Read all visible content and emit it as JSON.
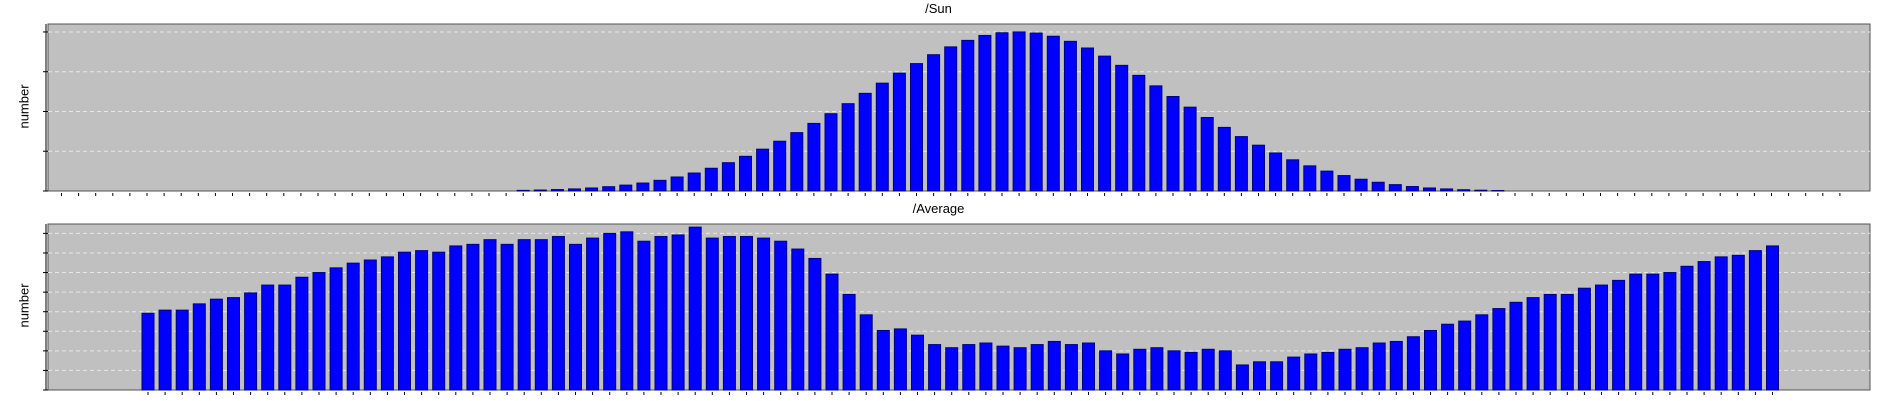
{
  "colors": {
    "plot_background": "#c0c0c0",
    "bar_fill": "#0000ff",
    "bar_stroke": "#000080",
    "grid": "#e8e8e8"
  },
  "chart_data": [
    {
      "type": "bar",
      "title": "/Sun",
      "ylabel": "number",
      "xlabel": "",
      "grid": true,
      "ylim": [
        0,
        1.05
      ],
      "yticks": [
        0,
        0.25,
        0.5,
        0.75,
        1.0
      ],
      "values": [
        0,
        0,
        0,
        0,
        0,
        0,
        0,
        0,
        0,
        0,
        0,
        0,
        0,
        0,
        0,
        0,
        0,
        0,
        0,
        0,
        0,
        0,
        0,
        0,
        0,
        0,
        0,
        0.004,
        0.006,
        0.009,
        0.013,
        0.019,
        0.027,
        0.037,
        0.05,
        0.067,
        0.088,
        0.113,
        0.143,
        0.178,
        0.218,
        0.263,
        0.313,
        0.367,
        0.425,
        0.486,
        0.549,
        0.614,
        0.678,
        0.741,
        0.801,
        0.857,
        0.906,
        0.947,
        0.978,
        0.995,
        1.0,
        0.993,
        0.973,
        0.941,
        0.899,
        0.848,
        0.79,
        0.727,
        0.661,
        0.594,
        0.527,
        0.462,
        0.4,
        0.342,
        0.288,
        0.239,
        0.196,
        0.158,
        0.125,
        0.097,
        0.074,
        0.055,
        0.04,
        0.028,
        0.019,
        0.013,
        0.008,
        0.005,
        0.003,
        0,
        0,
        0,
        0,
        0,
        0,
        0,
        0,
        0,
        0,
        0,
        0,
        0,
        0,
        0,
        0,
        0,
        0,
        0,
        0
      ]
    },
    {
      "type": "bar",
      "title": "/Average",
      "ylabel": "number",
      "xlabel": "",
      "grid": true,
      "ylim": [
        0,
        1.06
      ],
      "yticks": [
        0,
        0.125,
        0.25,
        0.375,
        0.5,
        0.625,
        0.75,
        0.875,
        1.0
      ],
      "values": [
        0.49,
        0.51,
        0.51,
        0.55,
        0.58,
        0.59,
        0.62,
        0.67,
        0.67,
        0.72,
        0.75,
        0.78,
        0.81,
        0.83,
        0.85,
        0.88,
        0.89,
        0.88,
        0.92,
        0.93,
        0.96,
        0.93,
        0.96,
        0.96,
        0.98,
        0.93,
        0.97,
        1.0,
        1.01,
        0.95,
        0.98,
        0.99,
        1.04,
        0.97,
        0.98,
        0.98,
        0.97,
        0.95,
        0.9,
        0.84,
        0.74,
        0.61,
        0.48,
        0.38,
        0.39,
        0.35,
        0.29,
        0.27,
        0.29,
        0.3,
        0.28,
        0.27,
        0.29,
        0.31,
        0.29,
        0.3,
        0.25,
        0.23,
        0.26,
        0.27,
        0.25,
        0.24,
        0.26,
        0.25,
        0.16,
        0.18,
        0.18,
        0.21,
        0.23,
        0.24,
        0.26,
        0.27,
        0.3,
        0.31,
        0.34,
        0.38,
        0.42,
        0.44,
        0.48,
        0.52,
        0.56,
        0.59,
        0.61,
        0.61,
        0.65,
        0.67,
        0.7,
        0.74,
        0.74,
        0.75,
        0.79,
        0.82,
        0.85,
        0.86,
        0.89,
        0.92
      ]
    }
  ]
}
